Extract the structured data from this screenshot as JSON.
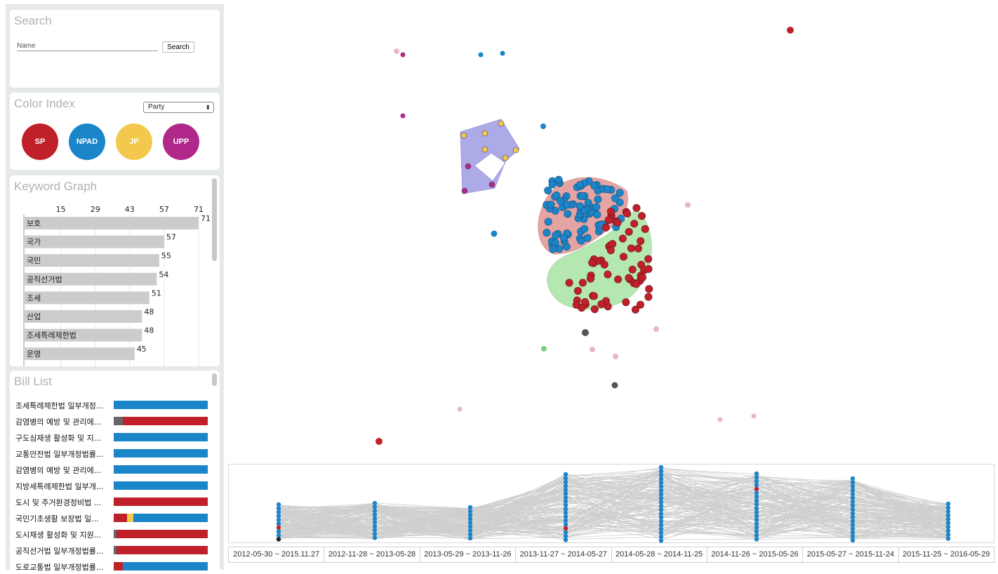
{
  "search": {
    "title": "Search",
    "placeholder": "Name",
    "button_label": "Search"
  },
  "color_index": {
    "title": "Color Index",
    "selected": "Party",
    "parties": [
      {
        "label": "SP",
        "color": "#c0202a"
      },
      {
        "label": "NPAD",
        "color": "#1b85c9"
      },
      {
        "label": "JP",
        "color": "#f2c94c"
      },
      {
        "label": "UPP",
        "color": "#b0288a"
      }
    ]
  },
  "keyword_graph": {
    "title": "Keyword Graph",
    "chart_data": {
      "type": "bar",
      "orientation": "horizontal",
      "ticks": [
        15,
        29,
        43,
        57,
        71
      ],
      "categories": [
        "보호",
        "국가",
        "국민",
        "공직선거법",
        "조세",
        "산업",
        "조세특례제한법",
        "운영"
      ],
      "values": [
        71,
        57,
        55,
        54,
        51,
        48,
        48,
        45
      ],
      "xlim": [
        0,
        71
      ]
    }
  },
  "bill_list": {
    "title": "Bill List",
    "items": [
      {
        "label": "조세특례제한법 일부개정...",
        "segments": [
          {
            "color": "#1b85c9",
            "frac": 1.0
          }
        ]
      },
      {
        "label": "감염병의 예방 및 관리에...",
        "segments": [
          {
            "color": "#666666",
            "frac": 0.1
          },
          {
            "color": "#c0202a",
            "frac": 0.9
          }
        ]
      },
      {
        "label": "구도심재생 활성화 및 지...",
        "segments": [
          {
            "color": "#1b85c9",
            "frac": 1.0
          }
        ]
      },
      {
        "label": "교통안전법 일부개정법률...",
        "segments": [
          {
            "color": "#1b85c9",
            "frac": 1.0
          }
        ]
      },
      {
        "label": "감염병의 예방 및 관리에...",
        "segments": [
          {
            "color": "#1b85c9",
            "frac": 1.0
          }
        ]
      },
      {
        "label": "지방세특례제한법 일부개...",
        "segments": [
          {
            "color": "#1b85c9",
            "frac": 1.0
          }
        ]
      },
      {
        "label": "도시 및 주거환경정비법 ...",
        "segments": [
          {
            "color": "#c0202a",
            "frac": 1.0
          }
        ]
      },
      {
        "label": "국민기초생활 보장법 일...",
        "segments": [
          {
            "color": "#c0202a",
            "frac": 0.14
          },
          {
            "color": "#f2c94c",
            "frac": 0.07
          },
          {
            "color": "#1b85c9",
            "frac": 0.79
          }
        ]
      },
      {
        "label": "도시재생 활성화 및 지원...",
        "segments": [
          {
            "color": "#666666",
            "frac": 0.03
          },
          {
            "color": "#c0202a",
            "frac": 0.97
          }
        ]
      },
      {
        "label": "공직선거법 일부개정법률...",
        "segments": [
          {
            "color": "#666666",
            "frac": 0.03
          },
          {
            "color": "#c0202a",
            "frac": 0.97
          }
        ]
      },
      {
        "label": "도로교통법 일부개정법률...",
        "segments": [
          {
            "color": "#c0202a",
            "frac": 0.1
          },
          {
            "color": "#1b85c9",
            "frac": 0.9
          }
        ]
      }
    ]
  },
  "timeline": {
    "periods": [
      "2012-05-30 ~ 2015.11.27",
      "2012-11-28 ~ 2013-05-28",
      "2013-05-29 ~ 2013-11-26",
      "2013-11-27 ~ 2014-05-27",
      "2014-05-28 ~ 2014-11-25",
      "2014-11-26 ~ 2015-05-26",
      "2015-05-27 ~ 2015-11-24",
      "2015-11-25 ~ 2016-05-29"
    ]
  }
}
